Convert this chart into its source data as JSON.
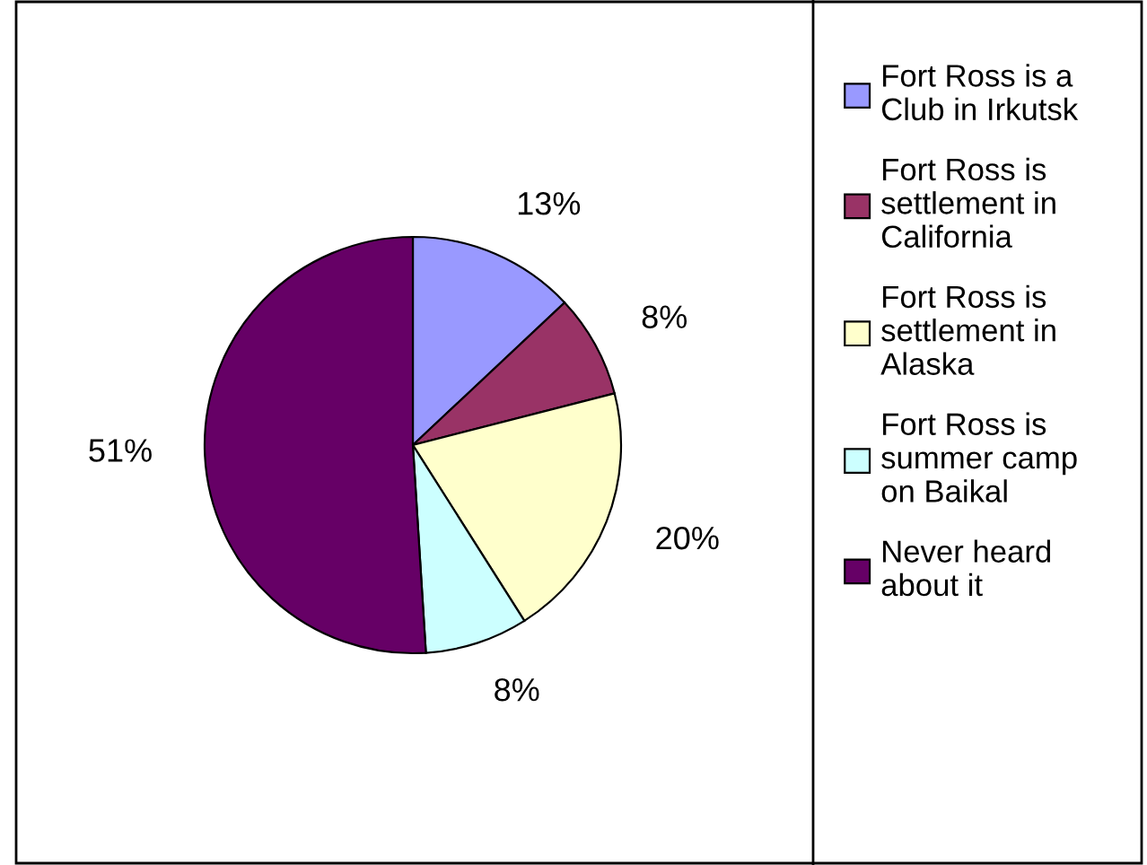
{
  "chart_data": {
    "type": "pie",
    "categories": [
      "Fort Ross is a\nClub in Irkutsk",
      "Fort Ross is\nsettlement in\nCalifornia",
      "Fort Ross is\nsettlement in\nAlaska",
      "Fort Ross is\nsummer camp\non Baikal",
      "Never heard\nabout it"
    ],
    "values": [
      13,
      8,
      20,
      8,
      51
    ],
    "colors": [
      "#9999ff",
      "#993366",
      "#ffffcc",
      "#ccffff",
      "#660066"
    ],
    "value_labels": [
      "13%",
      "8%",
      "20%",
      "8%",
      "51%"
    ],
    "legend": "right"
  }
}
